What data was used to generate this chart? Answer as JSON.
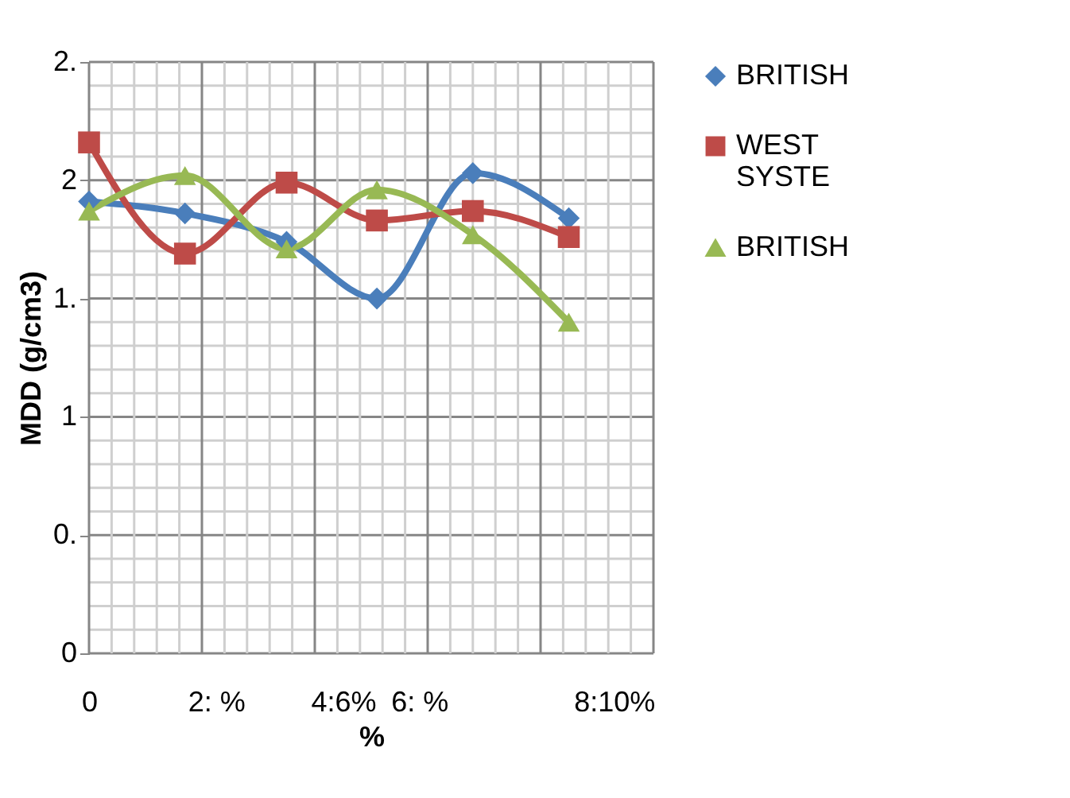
{
  "chart_data": {
    "type": "line",
    "xlabel": "%",
    "ylabel": "MDD (g/cm3)",
    "x": [
      0,
      1.7,
      3.5,
      5.1,
      6.8,
      8.5
    ],
    "xlim": [
      0,
      10
    ],
    "xticks": [
      {
        "value": 0,
        "label": "0"
      },
      {
        "value": 2.25,
        "label": "2: %"
      },
      {
        "value": 4.5,
        "label": "4:6%"
      },
      {
        "value": 5.85,
        "label": "6: %"
      },
      {
        "value": 9.3,
        "label": "8:10%"
      }
    ],
    "ylim": [
      0,
      2.5
    ],
    "yticks": [
      {
        "value": 0,
        "label": "0"
      },
      {
        "value": 0.5,
        "label": "0."
      },
      {
        "value": 1,
        "label": "1"
      },
      {
        "value": 1.5,
        "label": "1."
      },
      {
        "value": 2,
        "label": "2"
      },
      {
        "value": 2.5,
        "label": "2."
      }
    ],
    "grid": true,
    "legend": "right",
    "series": [
      {
        "name": "BRITISH",
        "color": "#4a7ebb",
        "marker": "diamond",
        "values": [
          1.91,
          1.86,
          1.74,
          1.5,
          2.03,
          1.84
        ]
      },
      {
        "name": "WEST SYSTE",
        "color": "#be4b48",
        "marker": "square",
        "values": [
          2.16,
          1.69,
          1.99,
          1.83,
          1.87,
          1.76
        ]
      },
      {
        "name": "BRITISH",
        "color": "#98b954",
        "marker": "triangle",
        "values": [
          1.87,
          2.02,
          1.71,
          1.96,
          1.77,
          1.4
        ]
      }
    ]
  }
}
